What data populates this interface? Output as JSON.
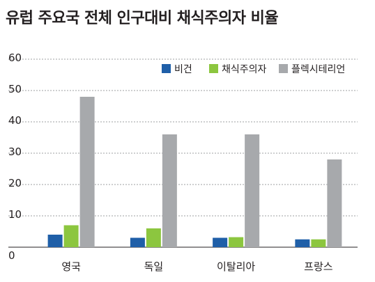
{
  "chart_data": {
    "type": "bar",
    "title": "유럽 주요국 전체 인구대비 채식주의자 비율",
    "xlabel": "",
    "ylabel": "",
    "categories": [
      "영국",
      "독일",
      "이탈리아",
      "프랑스"
    ],
    "series": [
      {
        "name": "비건",
        "values": [
          4,
          3,
          3,
          2.5
        ],
        "color": "#1f5fa8"
      },
      {
        "name": "채식주의자",
        "values": [
          7,
          6,
          3.2,
          2.5
        ],
        "color": "#8cc63f"
      },
      {
        "name": "플렉시테리언",
        "values": [
          48,
          36,
          36,
          28
        ],
        "color": "#a7a9ac"
      }
    ],
    "ylim": [
      0,
      60
    ],
    "yticks": [
      0,
      10,
      20,
      30,
      40,
      50,
      60
    ],
    "grid": true,
    "legend_position": "top-right"
  }
}
